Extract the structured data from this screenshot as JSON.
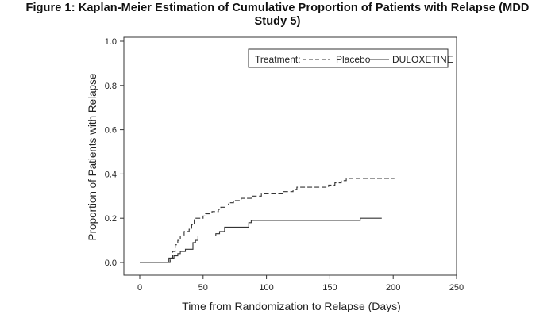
{
  "chart_data": {
    "type": "line",
    "title_line1": "Figure 1: Kaplan-Meier Estimation of Cumulative Proportion of Patients with Relapse (MDD",
    "title_line2": "Study 5)",
    "xlabel": "Time from Randomization to Relapse (Days)",
    "ylabel": "Proportion of Patients with Relapse",
    "xlim": [
      0,
      250
    ],
    "ylim": [
      0,
      1.0
    ],
    "x_ticks": [
      "0",
      "50",
      "100",
      "150",
      "200",
      "250"
    ],
    "y_ticks": [
      "0.0",
      "0.2",
      "0.4",
      "0.6",
      "0.8",
      "1.0"
    ],
    "grid": false,
    "legend": {
      "placement": "top-right",
      "prefix": "Treatment:",
      "entries": [
        "Placebo",
        "DULOXETINE"
      ]
    },
    "series": [
      {
        "name": "Placebo",
        "style": "dashed",
        "steps": [
          [
            0,
            0.0
          ],
          [
            21,
            0.0
          ],
          [
            24,
            0.02
          ],
          [
            26,
            0.05
          ],
          [
            28,
            0.08
          ],
          [
            30,
            0.1
          ],
          [
            32,
            0.12
          ],
          [
            35,
            0.14
          ],
          [
            39,
            0.15
          ],
          [
            41,
            0.17
          ],
          [
            43,
            0.2
          ],
          [
            50,
            0.21
          ],
          [
            52,
            0.22
          ],
          [
            57,
            0.23
          ],
          [
            62,
            0.24
          ],
          [
            64,
            0.25
          ],
          [
            67,
            0.26
          ],
          [
            70,
            0.27
          ],
          [
            74,
            0.28
          ],
          [
            80,
            0.29
          ],
          [
            88,
            0.3
          ],
          [
            96,
            0.31
          ],
          [
            113,
            0.32
          ],
          [
            121,
            0.33
          ],
          [
            124,
            0.34
          ],
          [
            149,
            0.35
          ],
          [
            154,
            0.36
          ],
          [
            159,
            0.37
          ],
          [
            163,
            0.38
          ],
          [
            201,
            0.38
          ]
        ]
      },
      {
        "name": "DULOXETINE",
        "style": "solid",
        "steps": [
          [
            0,
            0.0
          ],
          [
            21,
            0.0
          ],
          [
            23,
            0.02
          ],
          [
            27,
            0.03
          ],
          [
            30,
            0.04
          ],
          [
            32,
            0.05
          ],
          [
            36,
            0.06
          ],
          [
            42,
            0.09
          ],
          [
            44,
            0.1
          ],
          [
            46,
            0.12
          ],
          [
            60,
            0.13
          ],
          [
            63,
            0.14
          ],
          [
            67,
            0.16
          ],
          [
            86,
            0.18
          ],
          [
            88,
            0.19
          ],
          [
            174,
            0.2
          ],
          [
            191,
            0.2
          ]
        ]
      }
    ]
  }
}
